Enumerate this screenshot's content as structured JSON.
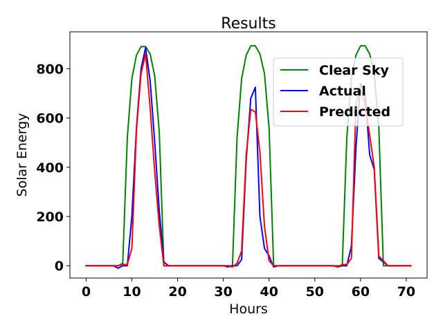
{
  "chart_data": {
    "type": "line",
    "title": "Results",
    "xlabel": "Hours",
    "ylabel": "Solar Energy",
    "xlim": [
      -3.55,
      74.55
    ],
    "ylim": [
      -50,
      950
    ],
    "xticks": [
      0,
      10,
      20,
      30,
      40,
      50,
      60,
      70
    ],
    "yticks": [
      0,
      200,
      400,
      600,
      800
    ],
    "grid": false,
    "legend_position": "upper right",
    "x": [
      0,
      1,
      2,
      3,
      4,
      5,
      6,
      7,
      8,
      9,
      10,
      11,
      12,
      13,
      14,
      15,
      16,
      17,
      18,
      19,
      20,
      21,
      22,
      23,
      24,
      25,
      26,
      27,
      28,
      29,
      30,
      31,
      32,
      33,
      34,
      35,
      36,
      37,
      38,
      39,
      40,
      41,
      42,
      43,
      44,
      45,
      46,
      47,
      48,
      49,
      50,
      51,
      52,
      53,
      54,
      55,
      56,
      57,
      58,
      59,
      60,
      61,
      62,
      63,
      64,
      65,
      66,
      67,
      68,
      69,
      70,
      71
    ],
    "series": [
      {
        "name": "Clear Sky",
        "color": "#008000",
        "values": [
          0,
          0,
          0,
          0,
          0,
          0,
          0,
          0,
          10,
          520,
          760,
          855,
          890,
          890,
          860,
          770,
          540,
          0,
          0,
          0,
          0,
          0,
          0,
          0,
          0,
          0,
          0,
          0,
          0,
          0,
          0,
          0,
          0,
          520,
          760,
          855,
          893,
          893,
          860,
          780,
          560,
          0,
          0,
          0,
          0,
          0,
          0,
          0,
          0,
          0,
          0,
          0,
          0,
          0,
          0,
          0,
          0,
          520,
          760,
          855,
          893,
          893,
          860,
          780,
          560,
          0,
          0,
          0,
          0,
          0,
          0,
          0
        ]
      },
      {
        "name": "Actual",
        "color": "#0000ff",
        "values": [
          0,
          0,
          0,
          0,
          0,
          0,
          0,
          -10,
          0,
          0,
          200,
          560,
          800,
          885,
          750,
          500,
          220,
          15,
          0,
          0,
          0,
          0,
          0,
          0,
          0,
          0,
          0,
          0,
          0,
          0,
          0,
          -5,
          0,
          0,
          25,
          430,
          680,
          725,
          200,
          70,
          40,
          -5,
          0,
          0,
          0,
          0,
          0,
          0,
          0,
          0,
          0,
          0,
          0,
          0,
          0,
          -5,
          0,
          0,
          80,
          480,
          740,
          700,
          450,
          390,
          30,
          15,
          0,
          0,
          0,
          0,
          0,
          0
        ]
      },
      {
        "name": "Predicted",
        "color": "#ff0000",
        "values": [
          0,
          0,
          0,
          0,
          0,
          0,
          0,
          0,
          5,
          5,
          70,
          550,
          780,
          860,
          640,
          380,
          160,
          0,
          0,
          0,
          0,
          0,
          0,
          0,
          0,
          0,
          0,
          0,
          0,
          0,
          0,
          0,
          -5,
          10,
          60,
          450,
          635,
          625,
          460,
          160,
          20,
          0,
          0,
          0,
          0,
          0,
          0,
          0,
          0,
          0,
          0,
          0,
          0,
          0,
          0,
          -5,
          5,
          5,
          30,
          660,
          720,
          660,
          530,
          400,
          40,
          20,
          0,
          0,
          0,
          0,
          0,
          0
        ]
      }
    ]
  }
}
